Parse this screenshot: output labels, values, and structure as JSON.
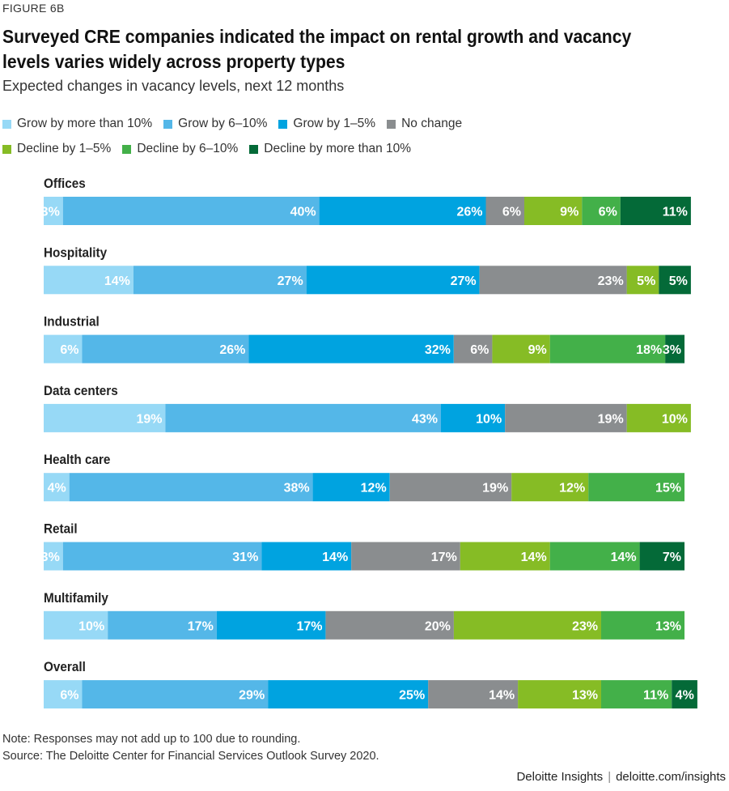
{
  "figure_label": "FIGURE 6B",
  "note": "Note: Responses may not add up to 100 due to rounding.",
  "source": "Source: The Deloitte Center for Financial Services Outlook Survey 2020.",
  "footer": {
    "brand": "Deloitte Insights",
    "separator": "|",
    "url": "deloitte.com/insights"
  },
  "colors": {
    "Grow by more than 10%": "#97d9f6",
    "Grow by 6–10%": "#54b7e8",
    "Grow by 1–5%": "#00a3e0",
    "No change": "#8a8d8f",
    "Decline by 1–5%": "#86bc25",
    "Decline by 6–10%": "#43b049",
    "Decline by more than 10%": "#046a38"
  },
  "chart_data": {
    "type": "bar",
    "orientation": "horizontal",
    "stacked": true,
    "title": "Surveyed CRE companies indicated the impact on rental growth and vacancy levels varies widely across property types",
    "subtitle": "Expected changes in vacancy levels, next 12 months",
    "xlabel": "",
    "ylabel": "",
    "legend_position": "top",
    "grid": false,
    "unit": "%",
    "categories": [
      "Offices",
      "Hospitality",
      "Industrial",
      "Data centers",
      "Health care",
      "Retail",
      "Multifamily",
      "Overall"
    ],
    "series": [
      {
        "name": "Grow by more than 10%",
        "values": [
          3,
          14,
          6,
          19,
          4,
          3,
          10,
          6
        ]
      },
      {
        "name": "Grow by 6–10%",
        "values": [
          40,
          27,
          26,
          43,
          38,
          31,
          17,
          29
        ]
      },
      {
        "name": "Grow by 1–5%",
        "values": [
          26,
          27,
          32,
          10,
          12,
          14,
          17,
          25
        ]
      },
      {
        "name": "No change",
        "values": [
          6,
          23,
          6,
          19,
          19,
          17,
          20,
          14
        ]
      },
      {
        "name": "Decline by 1–5%",
        "values": [
          9,
          5,
          9,
          10,
          12,
          14,
          23,
          13
        ]
      },
      {
        "name": "Decline by 6–10%",
        "values": [
          6,
          0,
          18,
          0,
          15,
          14,
          13,
          11
        ]
      },
      {
        "name": "Decline by more than 10%",
        "values": [
          11,
          5,
          3,
          0,
          0,
          7,
          0,
          4
        ]
      }
    ]
  }
}
